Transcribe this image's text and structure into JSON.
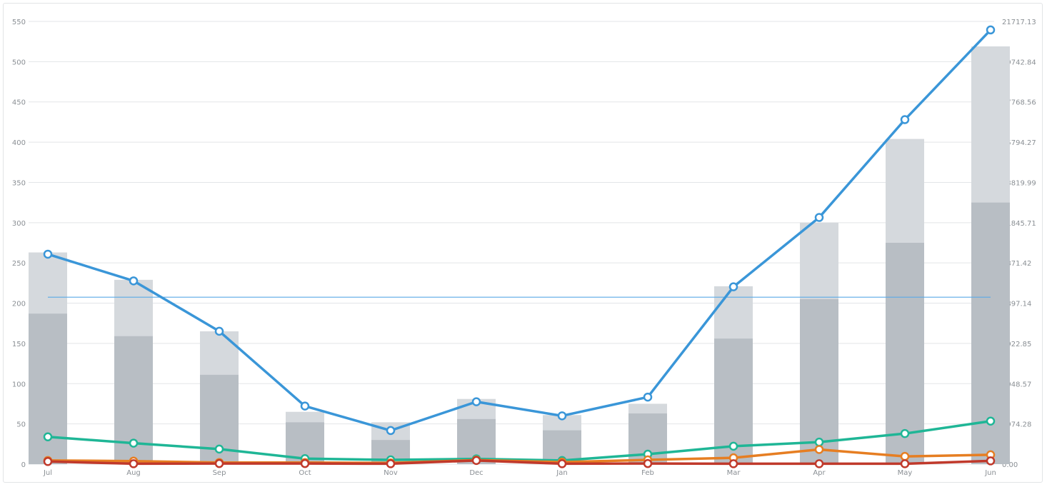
{
  "chart_data": {
    "type": "bar",
    "categories": [
      "Jul",
      "Aug",
      "Sep",
      "Oct",
      "Nov",
      "Dec",
      "Jan",
      "Feb",
      "Mar",
      "Apr",
      "May",
      "Jun"
    ],
    "left_axis": {
      "ylim": [
        0,
        550
      ],
      "ticks": [
        "0",
        "50",
        "100",
        "150",
        "200",
        "250",
        "300",
        "350",
        "400",
        "450",
        "500",
        "550"
      ]
    },
    "right_axis": {
      "ylim": [
        0,
        21717.13
      ],
      "ticks": [
        "0.00",
        "1974.28",
        "3948.57",
        "5922.85",
        "7897.14",
        "9871.42",
        "11845.71",
        "13819.99",
        "15794.27",
        "17768.56",
        "19742.84",
        "21717.13"
      ]
    },
    "bar_series": [
      {
        "values": [
          263,
          229,
          165,
          65,
          52,
          81,
          61,
          75,
          221,
          300,
          404,
          519
        ],
        "color": "#d5d9dd"
      },
      {
        "values": [
          187,
          159,
          111,
          52,
          30,
          56,
          42,
          63,
          156,
          205,
          275,
          325
        ],
        "color": "#b8bec4"
      }
    ],
    "line_series": [
      {
        "values": [
          10300,
          8990,
          6520,
          2850,
          1650,
          3060,
          2370,
          3290,
          8700,
          12100,
          16900,
          21300
        ],
        "axis": "right",
        "color": "#3a96d8"
      },
      {
        "values": [
          1340,
          1030,
          740,
          270,
          210,
          260,
          180,
          490,
          880,
          1080,
          1500,
          2110
        ],
        "axis": "right",
        "color": "#1fb696"
      },
      {
        "values": [
          180,
          150,
          80,
          80,
          60,
          200,
          100,
          210,
          310,
          720,
          380,
          460
        ],
        "axis": "right",
        "color": "#e67e22"
      },
      {
        "values": [
          130,
          20,
          30,
          30,
          20,
          180,
          20,
          30,
          20,
          20,
          20,
          160
        ],
        "axis": "right",
        "color": "#c0392b"
      }
    ],
    "reference_line": {
      "value": 8190,
      "axis": "right",
      "color": "#5aa9e6"
    },
    "grid": true,
    "legend": "none"
  }
}
